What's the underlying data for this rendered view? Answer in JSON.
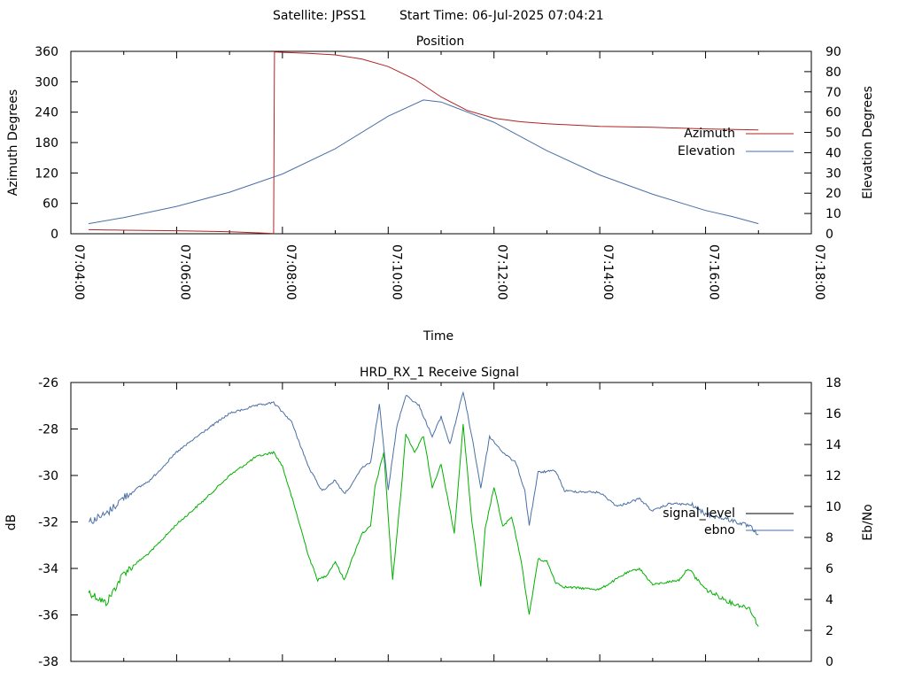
{
  "header": {
    "satellite_label": "Satellite: JPSS1",
    "start_time_label": "Start Time: 06-Jul-2025 07:04:21"
  },
  "chart_data": [
    {
      "type": "line",
      "title": "Position",
      "xlabel": "Time",
      "ylabel": "Azimuth Degrees",
      "y2label": "Elevation Degrees",
      "x_range": [
        "07:04:00",
        "07:18:00"
      ],
      "x_ticks": [
        "07:04:00",
        "07:06:00",
        "07:08:00",
        "07:10:00",
        "07:12:00",
        "07:14:00",
        "07:16:00",
        "07:18:00"
      ],
      "ylim": [
        0,
        360
      ],
      "yticks": [
        0,
        60,
        120,
        180,
        240,
        300,
        360
      ],
      "y2lim": [
        0,
        90
      ],
      "y2ticks": [
        0,
        10,
        20,
        30,
        40,
        50,
        60,
        70,
        80,
        90
      ],
      "grid": false,
      "legend_position": "right",
      "series": [
        {
          "name": "Azimuth",
          "axis": "left",
          "color": "#b22222",
          "points": [
            [
              "07:04:20",
              8
            ],
            [
              "07:05:00",
              7
            ],
            [
              "07:06:00",
              6
            ],
            [
              "07:07:00",
              4
            ],
            [
              "07:07:30",
              2
            ],
            [
              "07:07:50",
              0.5
            ],
            [
              "07:07:51",
              359
            ],
            [
              "07:08:00",
              358
            ],
            [
              "07:08:30",
              356
            ],
            [
              "07:09:00",
              353
            ],
            [
              "07:09:30",
              345
            ],
            [
              "07:10:00",
              330
            ],
            [
              "07:10:30",
              305
            ],
            [
              "07:11:00",
              270
            ],
            [
              "07:11:30",
              243
            ],
            [
              "07:12:00",
              228
            ],
            [
              "07:12:30",
              221
            ],
            [
              "07:13:00",
              217
            ],
            [
              "07:14:00",
              212
            ],
            [
              "07:15:00",
              210
            ],
            [
              "07:16:00",
              207
            ],
            [
              "07:17:00",
              205
            ]
          ]
        },
        {
          "name": "Elevation",
          "axis": "right",
          "color": "#4a6fa5",
          "points": [
            [
              "07:04:20",
              5
            ],
            [
              "07:05:00",
              8
            ],
            [
              "07:06:00",
              13.5
            ],
            [
              "07:07:00",
              20.5
            ],
            [
              "07:08:00",
              29.5
            ],
            [
              "07:09:00",
              42
            ],
            [
              "07:10:00",
              58
            ],
            [
              "07:10:40",
              66
            ],
            [
              "07:11:00",
              65
            ],
            [
              "07:12:00",
              55
            ],
            [
              "07:13:00",
              41
            ],
            [
              "07:14:00",
              29
            ],
            [
              "07:15:00",
              19.5
            ],
            [
              "07:16:00",
              11.5
            ],
            [
              "07:16:30",
              8.5
            ],
            [
              "07:17:00",
              5
            ]
          ]
        }
      ]
    },
    {
      "type": "line",
      "title": "HRD_RX_1 Receive Signal",
      "ylabel": "dB",
      "y2label": "Eb/No",
      "x_range": [
        "07:04:00",
        "07:18:00"
      ],
      "ylim": [
        -38,
        -26
      ],
      "yticks": [
        -38,
        -36,
        -34,
        -32,
        -30,
        -28,
        -26
      ],
      "y2lim": [
        0,
        18
      ],
      "y2ticks": [
        0,
        2,
        4,
        6,
        8,
        10,
        12,
        14,
        16,
        18
      ],
      "grid": false,
      "legend_position": "right",
      "series": [
        {
          "name": "signal_level",
          "axis": "left",
          "color": "#00b000",
          "legend_color": "#000000",
          "points": [
            [
              "07:04:20",
              -35
            ],
            [
              "07:04:40",
              -35.5
            ],
            [
              "07:05:00",
              -34.2
            ],
            [
              "07:05:30",
              -33.3
            ],
            [
              "07:06:00",
              -32.1
            ],
            [
              "07:06:30",
              -31.1
            ],
            [
              "07:07:00",
              -30
            ],
            [
              "07:07:30",
              -29.2
            ],
            [
              "07:07:50",
              -29
            ],
            [
              "07:08:00",
              -29.6
            ],
            [
              "07:08:15",
              -31.5
            ],
            [
              "07:08:30",
              -33.5
            ],
            [
              "07:08:40",
              -34.5
            ],
            [
              "07:08:50",
              -34.3
            ],
            [
              "07:09:00",
              -33.7
            ],
            [
              "07:09:10",
              -34.5
            ],
            [
              "07:09:20",
              -33.5
            ],
            [
              "07:09:30",
              -32.5
            ],
            [
              "07:09:40",
              -32.2
            ],
            [
              "07:09:45",
              -30.5
            ],
            [
              "07:09:55",
              -29
            ],
            [
              "07:10:05",
              -34.5
            ],
            [
              "07:10:15",
              -30.5
            ],
            [
              "07:10:20",
              -28.2
            ],
            [
              "07:10:30",
              -29
            ],
            [
              "07:10:40",
              -28.3
            ],
            [
              "07:10:50",
              -30.5
            ],
            [
              "07:11:00",
              -29.5
            ],
            [
              "07:11:10",
              -31.5
            ],
            [
              "07:11:15",
              -32.5
            ],
            [
              "07:11:25",
              -27.8
            ],
            [
              "07:11:35",
              -32
            ],
            [
              "07:11:45",
              -34.8
            ],
            [
              "07:11:50",
              -32.3
            ],
            [
              "07:12:00",
              -30.5
            ],
            [
              "07:12:10",
              -32.2
            ],
            [
              "07:12:20",
              -31.8
            ],
            [
              "07:12:30",
              -33.5
            ],
            [
              "07:12:40",
              -36
            ],
            [
              "07:12:50",
              -33.6
            ],
            [
              "07:13:00",
              -33.7
            ],
            [
              "07:13:10",
              -34.6
            ],
            [
              "07:13:20",
              -34.8
            ],
            [
              "07:14:00",
              -34.9
            ],
            [
              "07:14:30",
              -34.2
            ],
            [
              "07:14:45",
              -34
            ],
            [
              "07:15:00",
              -34.7
            ],
            [
              "07:15:30",
              -34.5
            ],
            [
              "07:15:40",
              -34.0
            ],
            [
              "07:16:00",
              -34.9
            ],
            [
              "07:16:30",
              -35.5
            ],
            [
              "07:16:50",
              -35.7
            ],
            [
              "07:17:00",
              -36.5
            ]
          ]
        },
        {
          "name": "ebno",
          "axis": "right",
          "color": "#4a6fa5",
          "points": [
            [
              "07:04:20",
              9
            ],
            [
              "07:04:40",
              9.5
            ],
            [
              "07:05:00",
              10.6
            ],
            [
              "07:05:30",
              11.7
            ],
            [
              "07:06:00",
              13.5
            ],
            [
              "07:06:30",
              14.8
            ],
            [
              "07:07:00",
              16
            ],
            [
              "07:07:30",
              16.5
            ],
            [
              "07:07:50",
              16.7
            ],
            [
              "07:08:10",
              15.5
            ],
            [
              "07:08:30",
              12.5
            ],
            [
              "07:08:45",
              11
            ],
            [
              "07:09:00",
              11.7
            ],
            [
              "07:09:10",
              10.8
            ],
            [
              "07:09:20",
              11.5
            ],
            [
              "07:09:30",
              12.5
            ],
            [
              "07:09:40",
              12.8
            ],
            [
              "07:09:50",
              16.6
            ],
            [
              "07:10:00",
              11.1
            ],
            [
              "07:10:10",
              15.2
            ],
            [
              "07:10:20",
              17.2
            ],
            [
              "07:10:35",
              16.5
            ],
            [
              "07:10:50",
              14.5
            ],
            [
              "07:11:00",
              15.8
            ],
            [
              "07:11:10",
              14
            ],
            [
              "07:11:25",
              17.4
            ],
            [
              "07:11:35",
              14.5
            ],
            [
              "07:11:45",
              11.2
            ],
            [
              "07:11:55",
              14.5
            ],
            [
              "07:12:10",
              13.5
            ],
            [
              "07:12:25",
              12.8
            ],
            [
              "07:12:35",
              11
            ],
            [
              "07:12:40",
              8.8
            ],
            [
              "07:12:50",
              12.2
            ],
            [
              "07:13:10",
              12.3
            ],
            [
              "07:13:20",
              11
            ],
            [
              "07:14:00",
              10.9
            ],
            [
              "07:14:20",
              10
            ],
            [
              "07:14:45",
              10.5
            ],
            [
              "07:15:00",
              9.7
            ],
            [
              "07:15:20",
              10.2
            ],
            [
              "07:15:45",
              10.1
            ],
            [
              "07:16:00",
              9.5
            ],
            [
              "07:16:30",
              9.1
            ],
            [
              "07:16:50",
              8.7
            ],
            [
              "07:17:00",
              8.2
            ]
          ]
        }
      ]
    }
  ]
}
